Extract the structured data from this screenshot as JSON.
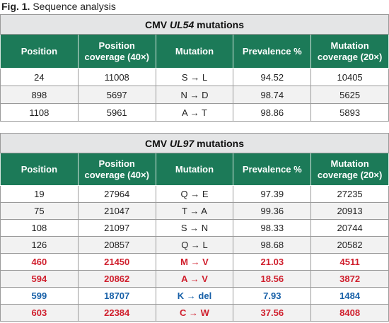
{
  "caption": {
    "label": "Fig. 1.",
    "text": "Sequence analysis"
  },
  "tables": [
    {
      "title": {
        "prefix": "CMV",
        "gene": "UL54",
        "suffix": "mutations"
      },
      "header": [
        "Position",
        "Position coverage (40×)",
        "Mutation",
        "Prevalence %",
        "Mutation coverage (20×)"
      ],
      "rows": [
        {
          "cells": [
            "24",
            "11008",
            "S → L",
            "94.52",
            "10405"
          ]
        },
        {
          "cells": [
            "898",
            "5697",
            "N → D",
            "98.74",
            "5625"
          ]
        },
        {
          "cells": [
            "1108",
            "5961",
            "A → T",
            "98.86",
            "5893"
          ]
        }
      ]
    },
    {
      "title": {
        "prefix": "CMV",
        "gene": "UL97",
        "suffix": "mutations"
      },
      "header": [
        "Position",
        "Position coverage (40×)",
        "Mutation",
        "Prevalence %",
        "Mutation coverage (20×)"
      ],
      "rows": [
        {
          "cells": [
            "19",
            "27964",
            "Q → E",
            "97.39",
            "27235"
          ]
        },
        {
          "cells": [
            "75",
            "21047",
            "T → A",
            "99.36",
            "20913"
          ]
        },
        {
          "cells": [
            "108",
            "21097",
            "S → N",
            "98.33",
            "20744"
          ]
        },
        {
          "cells": [
            "126",
            "20857",
            "Q → L",
            "98.68",
            "20582"
          ]
        },
        {
          "cells": [
            "460",
            "21450",
            "M → V",
            "21.03",
            "4511"
          ],
          "color": "#d0202e"
        },
        {
          "cells": [
            "594",
            "20862",
            "A → V",
            "18.56",
            "3872"
          ],
          "color": "#d0202e"
        },
        {
          "cells": [
            "599",
            "18707",
            "K → del",
            "7.93",
            "1484"
          ],
          "color": "#1760a8"
        },
        {
          "cells": [
            "603",
            "22384",
            "C → W",
            "37.56",
            "8408"
          ],
          "color": "#d0202e"
        }
      ]
    }
  ]
}
